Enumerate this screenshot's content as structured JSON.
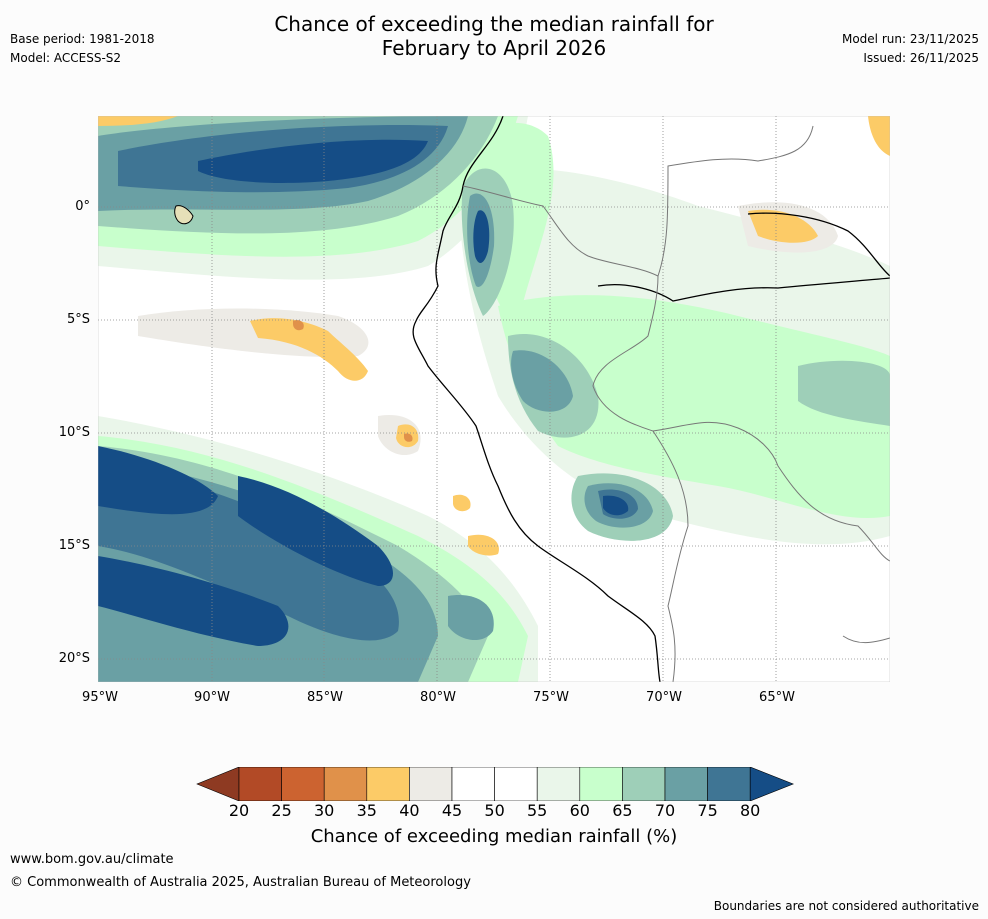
{
  "title": {
    "line1": "Chance of exceeding the median rainfall for",
    "line2": "February to April 2026"
  },
  "meta": {
    "base_period": "Base period: 1981-2018",
    "model": "Model: ACCESS-S2",
    "model_run": "Model run: 23/11/2025",
    "issued": "Issued: 26/11/2025"
  },
  "map": {
    "region": "Western South America (Peru)",
    "lat_labels": [
      "0°",
      "5°S",
      "10°S",
      "15°S",
      "20°S"
    ],
    "lon_labels": [
      "95°W",
      "90°W",
      "85°W",
      "80°W",
      "75°W",
      "70°W",
      "65°W"
    ]
  },
  "colorbar": {
    "title": "Chance of exceeding median rainfall (%)",
    "ticks": [
      "20",
      "25",
      "30",
      "35",
      "40",
      "45",
      "50",
      "55",
      "60",
      "65",
      "70",
      "75",
      "80"
    ],
    "colors": [
      "#8e3a22",
      "#b24a26",
      "#cc6330",
      "#e0914a",
      "#fccb67",
      "#edebe6",
      "#ffffff",
      "#ffffff",
      "#eaf6ea",
      "#c8ffcc",
      "#9ecfb8",
      "#6aa0a4",
      "#3f7594",
      "#154d86"
    ]
  },
  "footer": {
    "website": "www.bom.gov.au/climate",
    "copyright": "© Commonwealth of Australia 2025, Australian Bureau of Meteorology",
    "disclaimer": "Boundaries are not considered authoritative"
  }
}
